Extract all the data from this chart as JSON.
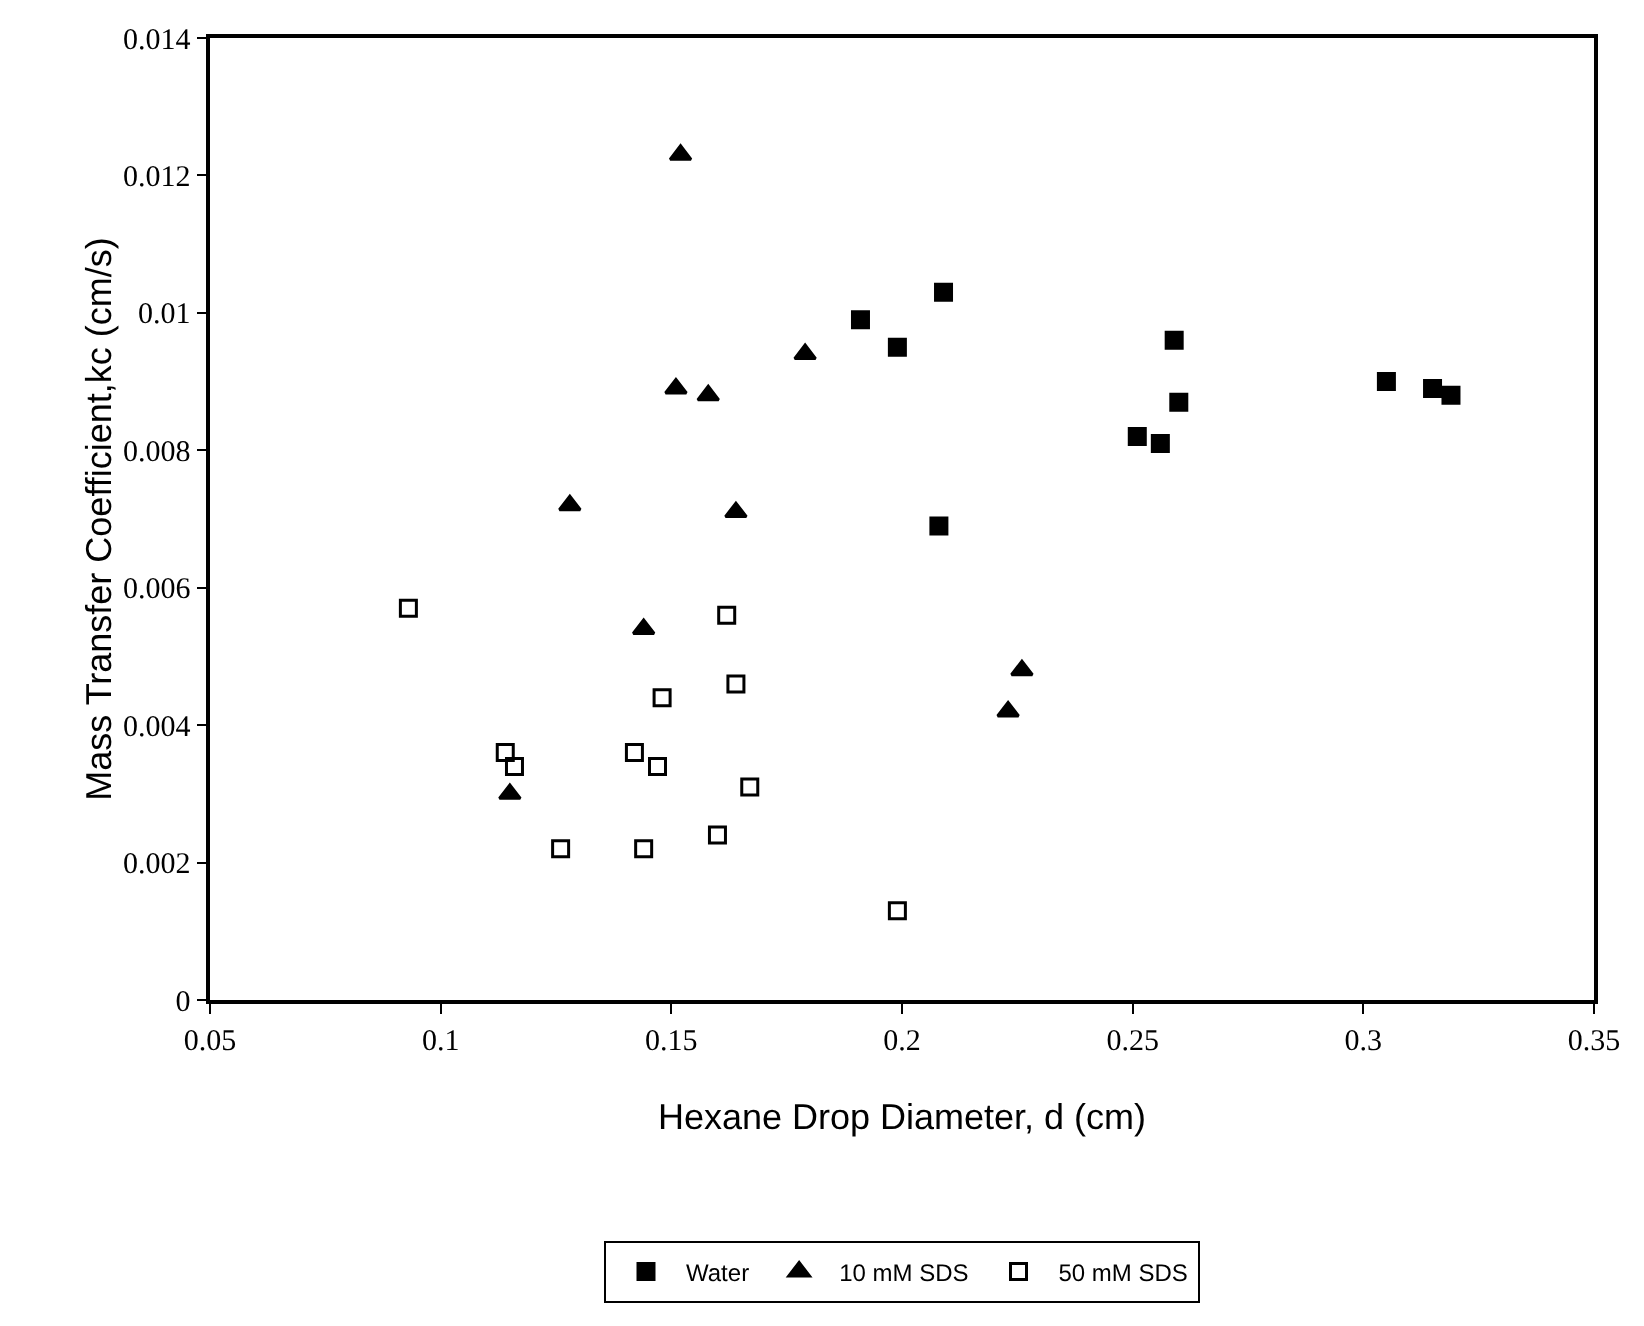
{
  "chart_data": {
    "type": "scatter",
    "xlabel": "Hexane Drop Diameter, d (cm)",
    "ylabel": "Mass Transfer Coefficient,kc (cm/s)",
    "xlim": [
      0.05,
      0.35
    ],
    "xticks": [
      0.05,
      0.1,
      0.15,
      0.2,
      0.25,
      0.3,
      0.35
    ],
    "ylim": [
      0,
      0.014
    ],
    "yticks": [
      0,
      0.002,
      0.004,
      0.006,
      0.008,
      0.01,
      0.012,
      0.014
    ],
    "grid": false,
    "legend": "bottom",
    "series": [
      {
        "name": "Water",
        "color": "#000000",
        "marker": "square",
        "x": [
          0.191,
          0.199,
          0.209,
          0.208,
          0.251,
          0.256,
          0.259,
          0.26,
          0.305,
          0.315,
          0.319
        ],
        "values": [
          0.0099,
          0.0095,
          0.0103,
          0.0069,
          0.0082,
          0.0081,
          0.0096,
          0.0087,
          0.009,
          0.0089,
          0.0088
        ]
      },
      {
        "name": "10 mM SDS",
        "color": "#000000",
        "marker": "triangle",
        "x": [
          0.115,
          0.128,
          0.144,
          0.151,
          0.152,
          0.158,
          0.164,
          0.179,
          0.223,
          0.226
        ],
        "values": [
          0.003,
          0.0072,
          0.0054,
          0.0089,
          0.0123,
          0.0088,
          0.0071,
          0.0094,
          0.0042,
          0.0048
        ]
      },
      {
        "name": "50 mM SDS",
        "color": "#000000",
        "marker": "square-open",
        "x": [
          0.093,
          0.114,
          0.116,
          0.126,
          0.142,
          0.144,
          0.147,
          0.148,
          0.16,
          0.162,
          0.164,
          0.167,
          0.199
        ],
        "values": [
          0.0057,
          0.0036,
          0.0034,
          0.0022,
          0.0036,
          0.0022,
          0.0034,
          0.0044,
          0.0024,
          0.0056,
          0.0046,
          0.0031,
          0.0013
        ]
      }
    ]
  }
}
